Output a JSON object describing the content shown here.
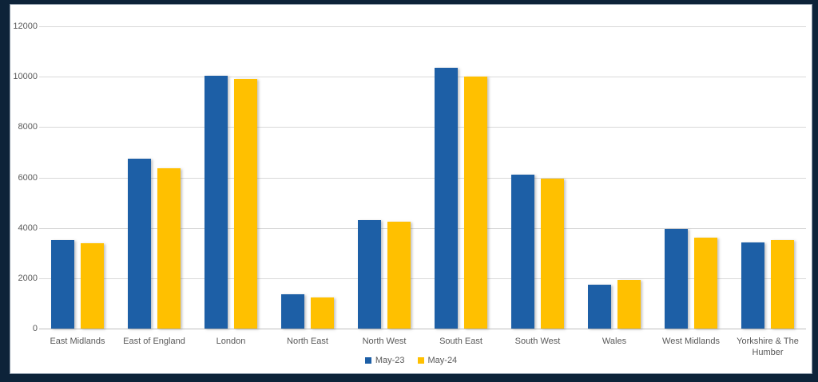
{
  "chart_data": {
    "type": "bar",
    "title": "",
    "xlabel": "",
    "ylabel": "",
    "categories": [
      "East Midlands",
      "East of England",
      "London",
      "North East",
      "North West",
      "South East",
      "South West",
      "Wales",
      "West Midlands",
      "Yorkshire & The Humber"
    ],
    "series": [
      {
        "name": "May-23",
        "color": "#1d5fa6",
        "values": [
          3500,
          6750,
          10050,
          1350,
          4300,
          10350,
          6100,
          1750,
          3950,
          3425
        ]
      },
      {
        "name": "May-24",
        "color": "#ffc000",
        "values": [
          3400,
          6350,
          9900,
          1225,
          4250,
          10000,
          5950,
          1925,
          3600,
          3500
        ]
      }
    ],
    "ylim": [
      0,
      12000
    ],
    "yticks": [
      0,
      2000,
      4000,
      6000,
      8000,
      10000,
      12000
    ],
    "grid": true,
    "legend_position": "bottom",
    "colors": {
      "frame_border": "#0d2339",
      "plot_background": "#ffffff",
      "gridline": "#d9d9d9",
      "axis_text": "#595959"
    }
  }
}
